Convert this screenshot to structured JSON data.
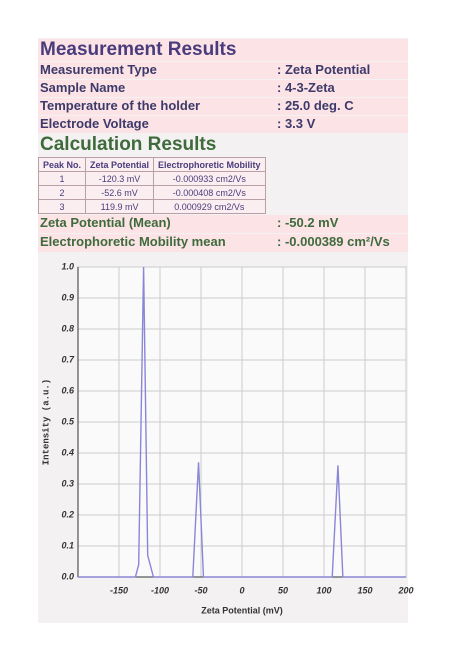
{
  "measurement": {
    "title": "Measurement Results",
    "rows": [
      [
        "Measurement Type",
        ": Zeta Potential"
      ],
      [
        "Sample Name",
        ": 4-3-Zeta"
      ],
      [
        "Temperature of the holder",
        ": 25.0 deg. C"
      ],
      [
        "Electrode Voltage",
        ": 3.3 V"
      ]
    ]
  },
  "calculation": {
    "title": "Calculation Results",
    "columns": [
      "Peak No.",
      "Zeta Potential",
      "Electrophoretic Mobility"
    ],
    "rows": [
      [
        "1",
        "-120.3 mV",
        "-0.000933 cm2/Vs"
      ],
      [
        "2",
        "-52.6 mV",
        "-0.000408 cm2/Vs"
      ],
      [
        "3",
        "119.9 mV",
        "0.000929 cm2/Vs"
      ]
    ],
    "summary": [
      [
        "Zeta Potential (Mean)",
        ": -50.2 mV"
      ],
      [
        "Electrophoretic Mobility mean",
        ": -0.000389 cm²/Vs"
      ]
    ]
  },
  "chart_data": {
    "type": "line",
    "x_label": "Zeta Potential (mV)",
    "y_label": "Intensity (a.u.)",
    "x": [
      -200,
      -130,
      -126,
      -120,
      -115,
      -108,
      -60,
      -53,
      -47,
      110,
      117,
      123,
      200
    ],
    "series": [
      {
        "color": "#8a86d6",
        "values": [
          0,
          0,
          0.04,
          1.0,
          0.07,
          0,
          0,
          0.37,
          0,
          0,
          0.36,
          0,
          0
        ]
      }
    ],
    "xlim": [
      -200,
      200
    ],
    "xticks": [
      -150,
      -100,
      -50,
      0,
      50,
      100,
      150,
      200
    ],
    "ylim": [
      0,
      1
    ],
    "yticks": [
      {
        "value": 0,
        "label": "0.0"
      },
      0.1,
      0.2,
      0.3,
      0.4,
      0.5,
      0.6,
      0.7,
      0.8,
      0.9,
      {
        "value": 1,
        "label": "1.0"
      }
    ],
    "grid": true
  }
}
